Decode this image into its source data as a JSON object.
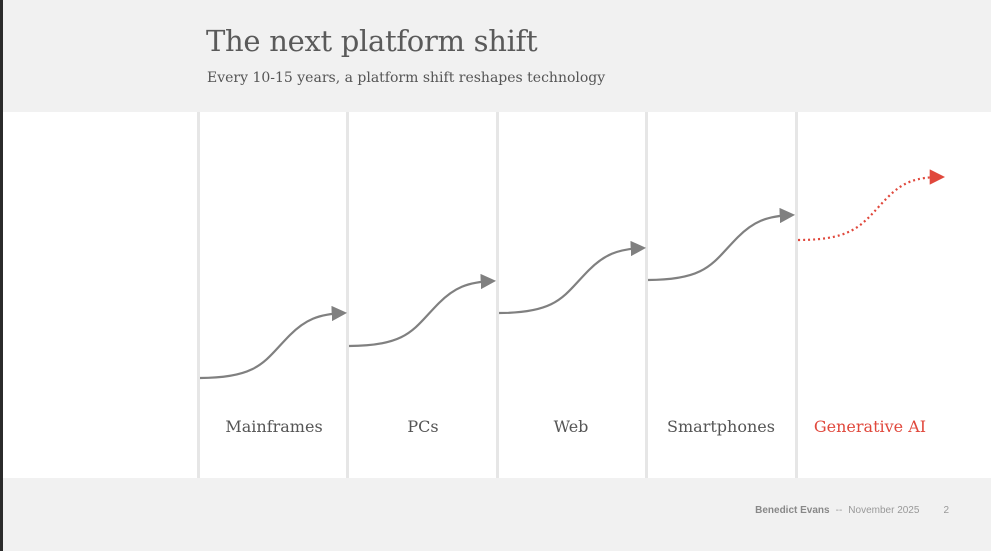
{
  "slide": {
    "title": "The next platform shift",
    "subtitle": "Every 10-15 years, a platform shift reshapes technology"
  },
  "diagram": {
    "columns": [
      {
        "label": "Mainframes",
        "style": "solid"
      },
      {
        "label": "PCs",
        "style": "solid"
      },
      {
        "label": "Web",
        "style": "solid"
      },
      {
        "label": "Smartphones",
        "style": "solid"
      },
      {
        "label": "Generative AI",
        "style": "dotted"
      }
    ]
  },
  "colors": {
    "curve": "#808080",
    "highlight": "#e0483c",
    "divider": "#e6e6e6"
  },
  "footer": {
    "author": "Benedict Evans",
    "separator": "--",
    "date": "November 2025",
    "page": "2"
  }
}
